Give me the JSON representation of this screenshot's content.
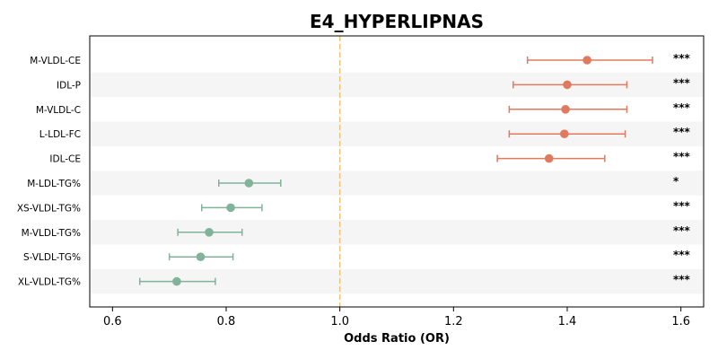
{
  "chart_data": {
    "type": "forest",
    "title": "E4_HYPERLIPNAS",
    "xlabel": "Odds Ratio (OR)",
    "ylabel": "",
    "xlim": [
      0.56,
      1.64
    ],
    "xticks": [
      0.6,
      0.8,
      1.0,
      1.2,
      1.4,
      1.6
    ],
    "xtick_labels": [
      "0.6",
      "0.8",
      "1.0",
      "1.2",
      "1.4",
      "1.6"
    ],
    "reference_line": 1.0,
    "grid": false,
    "colors": {
      "positive": "#e07a5f",
      "negative": "#81b29a",
      "reference": "#f2c46d",
      "band": "#f5f5f5"
    },
    "rows": [
      {
        "label": "M-VLDL-CE",
        "or": 1.435,
        "ci_low": 1.33,
        "ci_high": 1.55,
        "sig": "***"
      },
      {
        "label": "IDL-P",
        "or": 1.4,
        "ci_low": 1.305,
        "ci_high": 1.505,
        "sig": "***"
      },
      {
        "label": "M-VLDL-C",
        "or": 1.397,
        "ci_low": 1.298,
        "ci_high": 1.505,
        "sig": "***"
      },
      {
        "label": "L-LDL-FC",
        "or": 1.395,
        "ci_low": 1.298,
        "ci_high": 1.502,
        "sig": "***"
      },
      {
        "label": "IDL-CE",
        "or": 1.368,
        "ci_low": 1.277,
        "ci_high": 1.466,
        "sig": "***"
      },
      {
        "label": "M-LDL-TG%",
        "or": 0.84,
        "ci_low": 0.787,
        "ci_high": 0.896,
        "sig": "*"
      },
      {
        "label": "XS-VLDL-TG%",
        "or": 0.808,
        "ci_low": 0.757,
        "ci_high": 0.863,
        "sig": "***"
      },
      {
        "label": "M-VLDL-TG%",
        "or": 0.77,
        "ci_low": 0.715,
        "ci_high": 0.828,
        "sig": "***"
      },
      {
        "label": "S-VLDL-TG%",
        "or": 0.755,
        "ci_low": 0.7,
        "ci_high": 0.812,
        "sig": "***"
      },
      {
        "label": "XL-VLDL-TG%",
        "or": 0.713,
        "ci_low": 0.648,
        "ci_high": 0.781,
        "sig": "***"
      }
    ]
  }
}
